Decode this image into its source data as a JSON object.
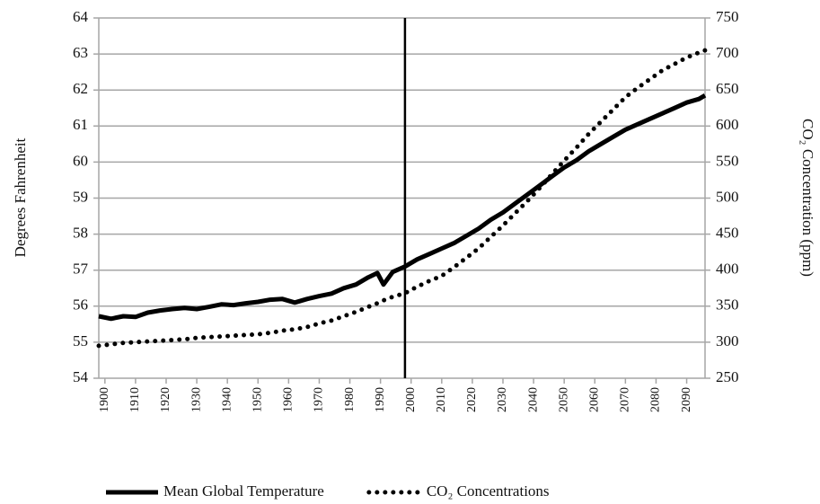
{
  "chart_data": {
    "type": "line",
    "y_label": "Degrees Fahrenheit",
    "y2_label": "CO₂ Concentration (ppm)",
    "x": [
      1898,
      1902,
      1906,
      1910,
      1914,
      1918,
      1922,
      1926,
      1930,
      1934,
      1938,
      1942,
      1946,
      1950,
      1954,
      1958,
      1962,
      1966,
      1970,
      1974,
      1978,
      1982,
      1986,
      1989,
      1991,
      1994,
      1998,
      2002,
      2006,
      2010,
      2014,
      2018,
      2022,
      2026,
      2030,
      2034,
      2038,
      2042,
      2046,
      2050,
      2054,
      2058,
      2062,
      2066,
      2070,
      2074,
      2078,
      2082,
      2086,
      2090,
      2094,
      2096
    ],
    "series": [
      {
        "name": "Mean Global Temperature",
        "color": "#000000",
        "style": "solid",
        "values": [
          55.72,
          55.65,
          55.72,
          55.7,
          55.82,
          55.88,
          55.92,
          55.95,
          55.92,
          55.98,
          56.05,
          56.03,
          56.08,
          56.12,
          56.18,
          56.2,
          56.1,
          56.2,
          56.28,
          56.35,
          56.5,
          56.6,
          56.8,
          56.92,
          56.6,
          56.95,
          57.1,
          57.3,
          57.45,
          57.6,
          57.75,
          57.95,
          58.15,
          58.4,
          58.6,
          58.85,
          59.1,
          59.35,
          59.6,
          59.85,
          60.05,
          60.3,
          60.5,
          60.7,
          60.9,
          61.05,
          61.2,
          61.35,
          61.5,
          61.65,
          61.75,
          61.85
        ]
      },
      {
        "name": "CO₂ Concentrations",
        "color": "#000000",
        "style": "dotted",
        "axis": "y2",
        "values": [
          295,
          297,
          299,
          300,
          301,
          302,
          303,
          304,
          306,
          307,
          308,
          309,
          310,
          311,
          313,
          316,
          318,
          321,
          326,
          330,
          336,
          342,
          349,
          354,
          358,
          363,
          368,
          377,
          385,
          392,
          404,
          417,
          430,
          446,
          462,
          479,
          496,
          514,
          533,
          552,
          570,
          589,
          606,
          623,
          640,
          653,
          665,
          677,
          686,
          695,
          702,
          705
        ]
      }
    ],
    "xlim": [
      1898,
      2096
    ],
    "xticks": [
      1900,
      1910,
      1920,
      1930,
      1940,
      1950,
      1960,
      1970,
      1980,
      1990,
      2000,
      2010,
      2020,
      2030,
      2040,
      2050,
      2060,
      2070,
      2080,
      2090
    ],
    "ylim": [
      54,
      64
    ],
    "yticks": [
      54,
      55,
      56,
      57,
      58,
      59,
      60,
      61,
      62,
      63,
      64
    ],
    "y2lim": [
      250,
      750
    ],
    "y2ticks": [
      250,
      300,
      350,
      400,
      450,
      500,
      550,
      600,
      650,
      700,
      750
    ],
    "vline": 1998,
    "grid": true,
    "legend": "bottom"
  }
}
